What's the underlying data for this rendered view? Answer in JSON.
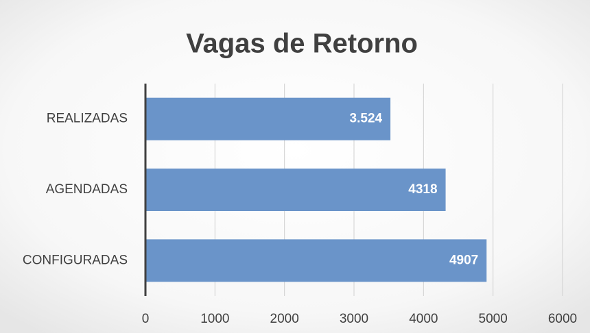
{
  "chart_data": {
    "type": "bar",
    "orientation": "horizontal",
    "title": "Vagas de Retorno",
    "categories": [
      "REALIZADAS",
      "AGENDADAS",
      "CONFIGURADAS"
    ],
    "values": [
      3524,
      4318,
      4907
    ],
    "value_labels": [
      "3.524",
      "4318",
      "4907"
    ],
    "color": "#6a94c9",
    "xlim": [
      0,
      6000
    ],
    "xticks": [
      0,
      1000,
      2000,
      3000,
      4000,
      5000,
      6000
    ],
    "grid": true
  }
}
